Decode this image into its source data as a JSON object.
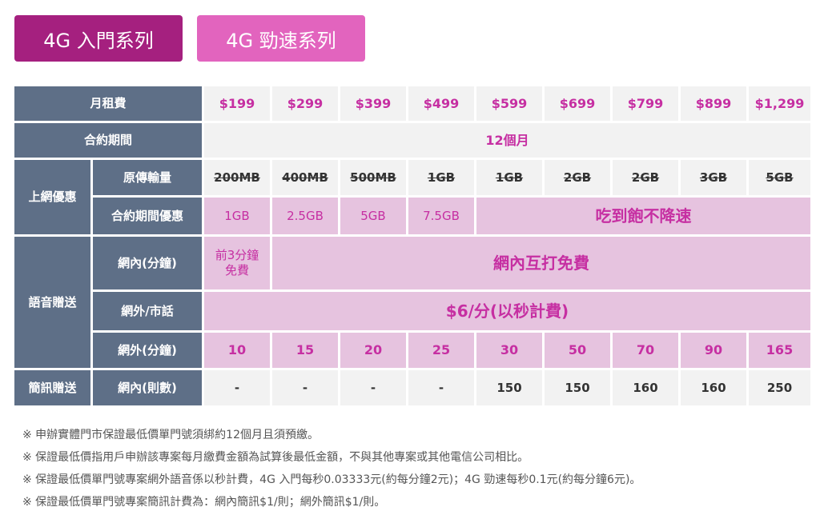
{
  "tabs": [
    {
      "label": "4G 入門系列"
    },
    {
      "label": "4G 勁速系列"
    }
  ],
  "table": {
    "monthly_fee_label": "月租費",
    "prices": [
      "$199",
      "$299",
      "$399",
      "$499",
      "$599",
      "$699",
      "$799",
      "$899",
      "$1,299"
    ],
    "contract_label": "合約期間",
    "contract_value": "12個月",
    "data_group_label": "上網優惠",
    "original_data_label": "原傳輸量",
    "original_data": [
      "200MB",
      "400MB",
      "500MB",
      "1GB",
      "1GB",
      "2GB",
      "2GB",
      "3GB",
      "5GB"
    ],
    "contract_data_label": "合約期間優惠",
    "contract_data": [
      "1GB",
      "2.5GB",
      "5GB",
      "7.5GB"
    ],
    "unlimited_label": "吃到飽不降速",
    "voice_group_label": "語音贈送",
    "onnet_label": "網內(分鐘)",
    "onnet_first": "前3分鐘 免費",
    "onnet_free": "網內互打免費",
    "offnet_local_label": "網外/市話",
    "offnet_local_value": "$6/分(以秒計費)",
    "offnet_min_label": "網外(分鐘)",
    "offnet_min": [
      "10",
      "15",
      "20",
      "25",
      "30",
      "50",
      "70",
      "90",
      "165"
    ],
    "sms_group_label": "簡訊贈送",
    "sms_onnet_label": "網內(則數)",
    "sms_onnet": [
      "-",
      "-",
      "-",
      "-",
      "150",
      "150",
      "160",
      "160",
      "250"
    ]
  },
  "notes": [
    "※ 申辦實體門市保證最低價單門號須綁約12個月且須預繳。",
    "※ 保證最低價指用戶申辦該專案每月繳費金額為試算後最低金額，不與其他專案或其他電信公司相比。",
    "※ 保證最低價單門號專案網外語音係以秒計費，4G 入門每秒0.03333元(約每分鐘2元)；4G 勁速每秒0.1元(約每分鐘6元)。",
    "※ 保證最低價單門號專案簡訊計費為：網內簡訊$1/則；網外簡訊$1/則。"
  ]
}
